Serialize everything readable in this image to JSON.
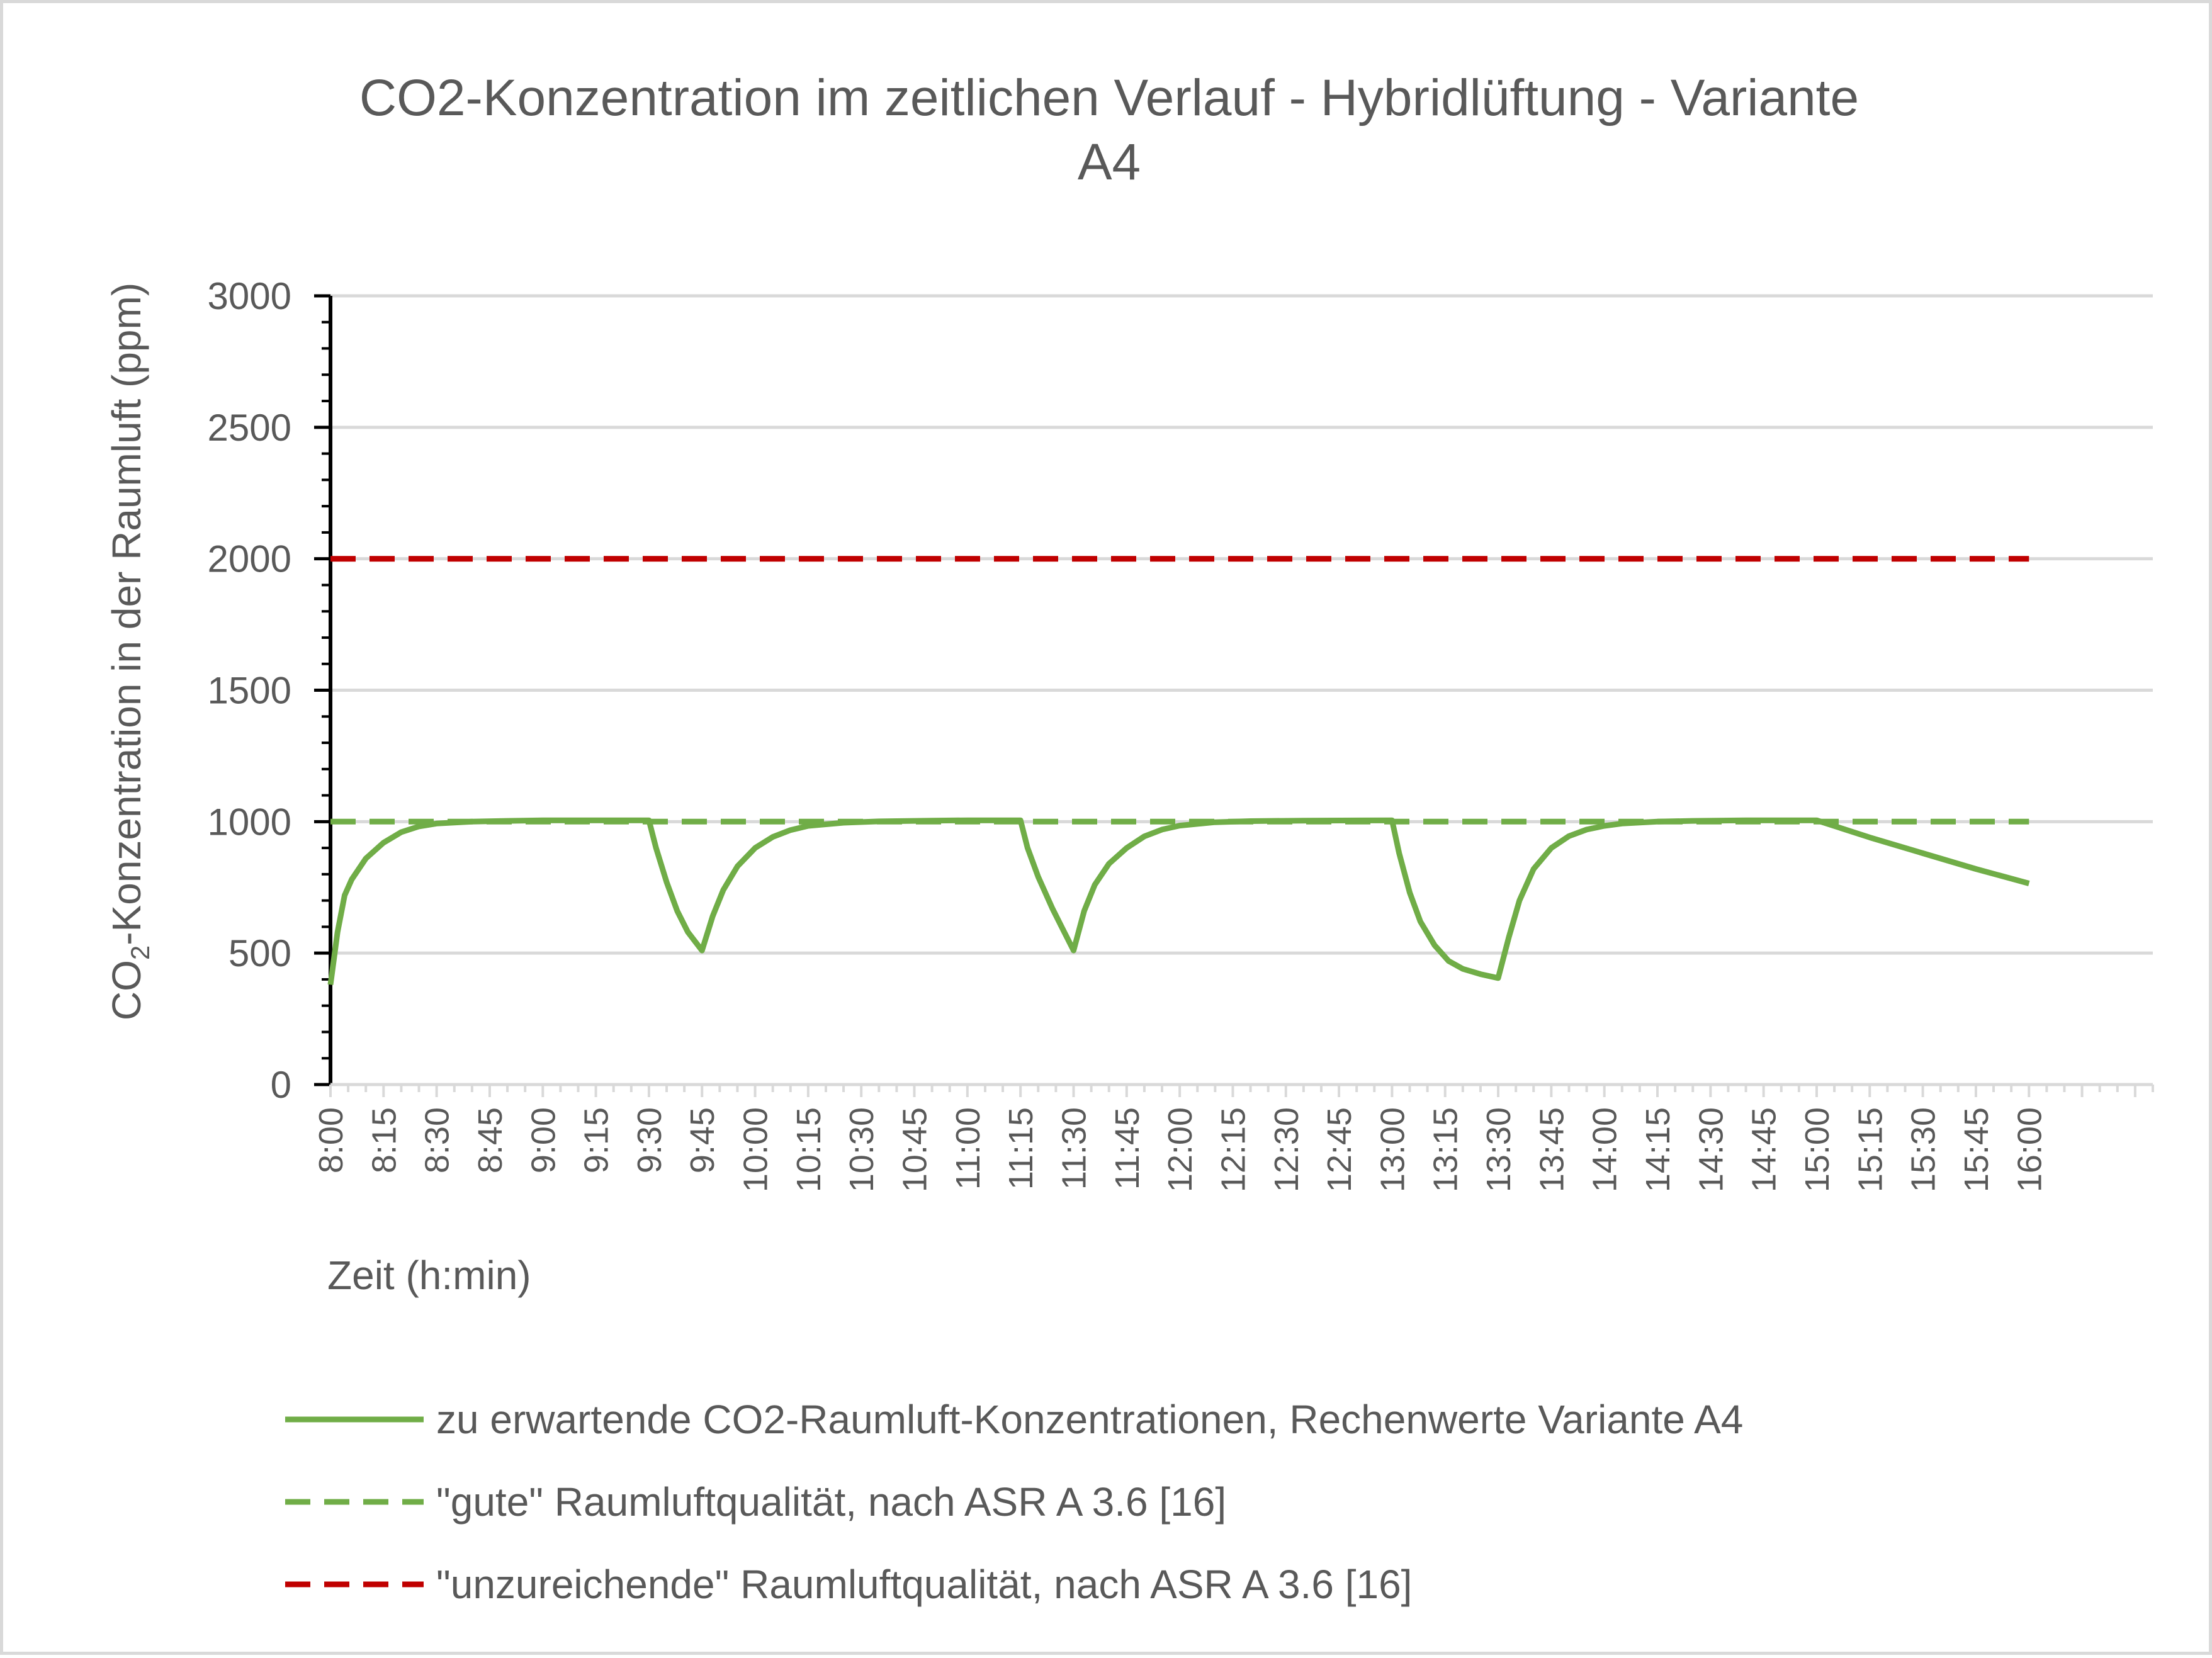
{
  "chart_data": {
    "type": "line",
    "title_line1": "CO2-Konzentration im zeitlichen Verlauf - Hybridlüftung - Variante",
    "title_line2": "A4",
    "ylabel_main": "CO",
    "ylabel_sub": "2",
    "ylabel_rest": "-Konzentration in der Raumluft (ppm)",
    "xlabel": "Zeit (h:min)",
    "ylim": [
      0,
      3000
    ],
    "yticks": [
      "0",
      "500",
      "1000",
      "1500",
      "2000",
      "2500",
      "3000"
    ],
    "ytick_values": [
      0,
      500,
      1000,
      1500,
      2000,
      2500,
      3000
    ],
    "xlim_minutes": [
      0,
      515
    ],
    "xticks": [
      "8:00",
      "8:15",
      "8:30",
      "8:45",
      "9:00",
      "9:15",
      "9:30",
      "9:45",
      "10:00",
      "10:15",
      "10:30",
      "10:45",
      "11:00",
      "11:15",
      "11:30",
      "11:45",
      "12:00",
      "12:15",
      "12:30",
      "12:45",
      "13:00",
      "13:15",
      "13:30",
      "13:45",
      "14:00",
      "14:15",
      "14:30",
      "14:45",
      "15:00",
      "15:15",
      "15:30",
      "15:45",
      "16:00"
    ],
    "grid": true,
    "legend_position": "bottom",
    "series": [
      {
        "name": "zu erwartende CO2-Raumluft-Konzentrationen, Rechenwerte Variante A4",
        "color": "#70ad47",
        "style": "solid",
        "x": [
          "8:00",
          "8:02",
          "8:04",
          "8:06",
          "8:10",
          "8:15",
          "8:20",
          "8:25",
          "8:30",
          "8:40",
          "8:50",
          "9:00",
          "9:15",
          "9:30",
          "9:32",
          "9:35",
          "9:38",
          "9:41",
          "9:45",
          "9:48",
          "9:51",
          "9:55",
          "10:00",
          "10:05",
          "10:10",
          "10:15",
          "10:25",
          "10:35",
          "10:50",
          "11:00",
          "11:15",
          "11:17",
          "11:20",
          "11:24",
          "11:27",
          "11:30",
          "11:33",
          "11:36",
          "11:40",
          "11:45",
          "11:50",
          "11:55",
          "12:00",
          "12:10",
          "12:20",
          "12:35",
          "13:00",
          "13:02",
          "13:05",
          "13:08",
          "13:12",
          "13:16",
          "13:20",
          "13:25",
          "13:30",
          "13:33",
          "13:36",
          "13:40",
          "13:45",
          "13:50",
          "13:55",
          "14:00",
          "14:05",
          "14:15",
          "14:25",
          "14:40",
          "15:00",
          "15:15",
          "15:30",
          "15:45",
          "16:00"
        ],
        "values": [
          380,
          580,
          720,
          780,
          860,
          920,
          960,
          982,
          993,
          1000,
          1003,
          1005,
          1005,
          1005,
          900,
          770,
          660,
          580,
          510,
          640,
          740,
          830,
          900,
          942,
          968,
          984,
          996,
          1001,
          1004,
          1005,
          1005,
          900,
          790,
          670,
          590,
          510,
          660,
          760,
          840,
          900,
          944,
          970,
          985,
          998,
          1002,
          1004,
          1005,
          880,
          730,
          620,
          530,
          470,
          440,
          420,
          405,
          560,
          700,
          820,
          900,
          945,
          970,
          984,
          993,
          1000,
          1003,
          1005,
          1005,
          940,
          880,
          820,
          765
        ]
      },
      {
        "name": "\"gute\" Raumluftqualität, nach ASR A 3.6 [16]",
        "color": "#70ad47",
        "style": "dashed",
        "x": [
          "8:00",
          "16:00"
        ],
        "values": [
          1000,
          1000
        ]
      },
      {
        "name": "\"unzureichende\" Raumluftqualität, nach ASR A 3.6 [16]",
        "color": "#c00000",
        "style": "dashed",
        "x": [
          "8:00",
          "16:00"
        ],
        "values": [
          2000,
          2000
        ]
      }
    ]
  }
}
